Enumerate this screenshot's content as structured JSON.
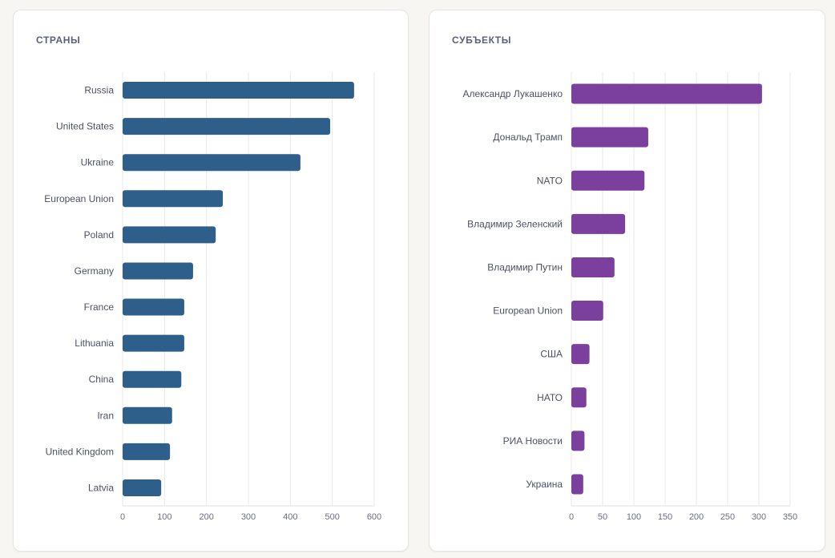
{
  "chart_data": [
    {
      "type": "bar",
      "orientation": "horizontal",
      "title": "СТРАНЫ",
      "categories": [
        "Russia",
        "United States",
        "Ukraine",
        "European Union",
        "Poland",
        "Germany",
        "France",
        "Lithuania",
        "China",
        "Iran",
        "United Kingdom",
        "Latvia"
      ],
      "values": [
        552,
        495,
        424,
        239,
        222,
        168,
        147,
        147,
        140,
        118,
        113,
        92
      ],
      "xlim": [
        0,
        600
      ],
      "xticks": [
        0,
        100,
        200,
        300,
        400,
        500,
        600
      ],
      "xlabel": "",
      "ylabel": "",
      "grid": true,
      "color": "#2d5f8a"
    },
    {
      "type": "bar",
      "orientation": "horizontal",
      "title": "СУБЪЕКТЫ",
      "categories": [
        "Александр Лукашенко",
        "Дональд Трамп",
        "NATO",
        "Владимир Зеленский",
        "Владимир Путин",
        "European Union",
        "США",
        "НАТО",
        "РИА Новости",
        "Украина"
      ],
      "values": [
        305,
        123,
        117,
        86,
        69,
        51,
        29,
        24,
        21,
        19
      ],
      "xlim": [
        0,
        350
      ],
      "xticks": [
        0,
        50,
        100,
        150,
        200,
        250,
        300,
        350
      ],
      "xlabel": "",
      "ylabel": "",
      "grid": true,
      "color": "#7b3f9e"
    }
  ]
}
